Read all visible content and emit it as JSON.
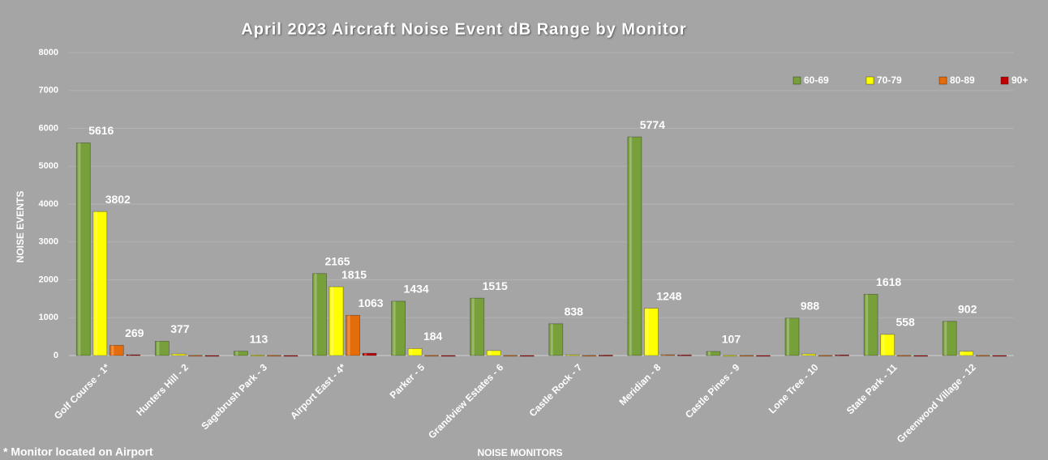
{
  "chart_data": {
    "type": "bar",
    "title": "April 2023 Aircraft Noise Event dB Range by Monitor",
    "x_label": "NOISE MONITORS",
    "y_label": "NOISE EVENTS",
    "footnote": "* Monitor located on Airport",
    "categories": [
      "Golf Course - 1*",
      "Hunters Hill - 2",
      "Sagebrush Park - 3",
      "Airport East - 4*",
      "Parker - 5",
      "Grandview Estates - 6",
      "Castle Rock - 7",
      "Meridian - 8",
      "Castle Pines - 9",
      "Lone Tree - 10",
      "State Park - 11",
      "Greenwood Village - 12"
    ],
    "series": [
      {
        "name": "60-69",
        "color": "#77a03a",
        "values": [
          5616,
          377,
          113,
          2165,
          1434,
          1515,
          838,
          5774,
          107,
          988,
          1618,
          902
        ],
        "value_labels": [
          "5616",
          "377",
          "113",
          "2165",
          "1434",
          "1515",
          "838",
          "5774",
          "107",
          "988",
          "1618",
          "902"
        ]
      },
      {
        "name": "70-79",
        "color": "#ffff00",
        "values": [
          3802,
          40,
          10,
          1815,
          184,
          130,
          20,
          1248,
          5,
          40,
          558,
          110
        ],
        "value_labels": [
          "3802",
          null,
          null,
          "1815",
          "184",
          null,
          null,
          "1248",
          null,
          null,
          "558",
          null
        ]
      },
      {
        "name": "80-89",
        "color": "#e46c0a",
        "values": [
          269,
          5,
          5,
          1063,
          5,
          5,
          5,
          20,
          5,
          5,
          5,
          5
        ],
        "value_labels": [
          "269",
          null,
          null,
          "1063",
          null,
          null,
          null,
          null,
          null,
          null,
          null,
          null
        ]
      },
      {
        "name": "90+",
        "color": "#c00000",
        "values": [
          20,
          2,
          2,
          60,
          2,
          2,
          10,
          15,
          2,
          15,
          2,
          2
        ]
      }
    ],
    "ylim": [
      0,
      8000
    ],
    "yticks": [
      0,
      1000,
      2000,
      3000,
      4000,
      5000,
      6000,
      7000,
      8000
    ],
    "grid": true,
    "legend": "top-right"
  }
}
